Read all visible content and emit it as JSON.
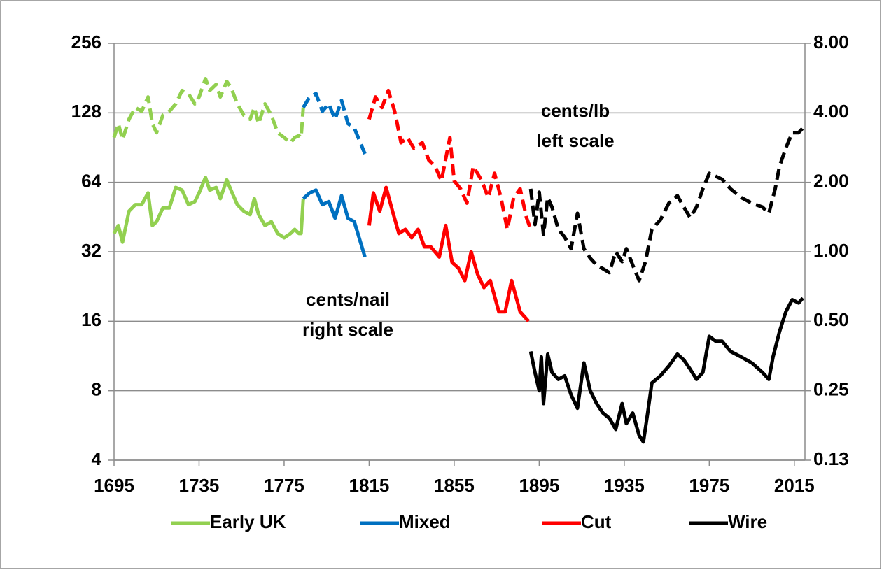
{
  "chart_data": {
    "type": "line",
    "log_scale": true,
    "grid": true,
    "legend": "bottom",
    "xlim": [
      1695,
      2020
    ],
    "xticks": [
      1695,
      1735,
      1775,
      1815,
      1855,
      1895,
      1935,
      1975,
      2015
    ],
    "ylim": [
      4,
      256
    ],
    "yticks": [
      4,
      8,
      16,
      32,
      64,
      128,
      256
    ],
    "y2lim": [
      0.125,
      8
    ],
    "y2ticks": [
      {
        "value": 0.125,
        "label": "0.13"
      },
      {
        "value": 0.25,
        "label": "0.25"
      },
      {
        "value": 0.5,
        "label": "0.50"
      },
      {
        "value": 1,
        "label": "1.00"
      },
      {
        "value": 2,
        "label": "2.00"
      },
      {
        "value": 4,
        "label": "4.00"
      },
      {
        "value": 8,
        "label": "8.00"
      }
    ],
    "annotations": [
      "cents/lb",
      "left scale",
      "cents/nail",
      "right scale"
    ],
    "series": [
      {
        "name": "Early UK",
        "color": "#92d050",
        "axis": "y2",
        "dashed": false,
        "x": [
          1695,
          1697,
          1699,
          1702,
          1705,
          1708,
          1711,
          1713,
          1715,
          1718,
          1721,
          1724,
          1727,
          1730,
          1733,
          1735,
          1738,
          1740,
          1743,
          1745,
          1748,
          1750,
          1753,
          1756,
          1759,
          1761,
          1763,
          1766,
          1769,
          1772,
          1775,
          1778,
          1780,
          1782,
          1783,
          1784
        ],
        "values": [
          1.2,
          1.3,
          1.1,
          1.5,
          1.6,
          1.6,
          1.8,
          1.3,
          1.35,
          1.55,
          1.55,
          1.9,
          1.85,
          1.6,
          1.65,
          1.8,
          2.1,
          1.85,
          1.9,
          1.7,
          2.05,
          1.85,
          1.6,
          1.5,
          1.45,
          1.7,
          1.45,
          1.3,
          1.35,
          1.2,
          1.15,
          1.2,
          1.25,
          1.2,
          1.2,
          1.7
        ]
      },
      {
        "name": "Mixed",
        "color": "#0070c0",
        "axis": "y2",
        "dashed": false,
        "x": [
          1784,
          1787,
          1790,
          1793,
          1796,
          1799,
          1802,
          1805,
          1808,
          1813
        ],
        "values": [
          1.7,
          1.8,
          1.85,
          1.6,
          1.65,
          1.4,
          1.75,
          1.4,
          1.35,
          0.95
        ]
      },
      {
        "name": "Cut",
        "color": "#ff0000",
        "axis": "y2",
        "dashed": false,
        "x": [
          1815,
          1817,
          1820,
          1823,
          1826,
          1829,
          1832,
          1835,
          1838,
          1841,
          1844,
          1848,
          1851,
          1854,
          1857,
          1860,
          1863,
          1866,
          1869,
          1872,
          1876,
          1879,
          1882,
          1886,
          1890
        ],
        "values": [
          1.3,
          1.8,
          1.5,
          1.9,
          1.5,
          1.2,
          1.25,
          1.15,
          1.25,
          1.05,
          1.05,
          0.95,
          1.3,
          0.9,
          0.85,
          0.75,
          1.0,
          0.8,
          0.7,
          0.75,
          0.55,
          0.55,
          0.75,
          0.55,
          0.5
        ]
      },
      {
        "name": "Wire",
        "color": "#000000",
        "axis": "y2",
        "dashed": false,
        "x": [
          1891,
          1893,
          1895,
          1896,
          1897,
          1899,
          1901,
          1904,
          1907,
          1910,
          1913,
          1916,
          1919,
          1922,
          1925,
          1928,
          1931,
          1934,
          1936,
          1939,
          1942,
          1944,
          1946,
          1948,
          1952,
          1956,
          1960,
          1963,
          1966,
          1969,
          1972,
          1975,
          1978,
          1981,
          1985,
          1990,
          1995,
          2000,
          2003,
          2005,
          2008,
          2011,
          2014,
          2017,
          2019
        ],
        "values": [
          0.37,
          0.3,
          0.25,
          0.35,
          0.22,
          0.36,
          0.3,
          0.28,
          0.29,
          0.24,
          0.21,
          0.33,
          0.25,
          0.22,
          0.2,
          0.19,
          0.17,
          0.22,
          0.18,
          0.2,
          0.16,
          0.15,
          0.2,
          0.27,
          0.29,
          0.32,
          0.36,
          0.34,
          0.31,
          0.28,
          0.3,
          0.43,
          0.41,
          0.41,
          0.37,
          0.35,
          0.33,
          0.3,
          0.28,
          0.35,
          0.45,
          0.55,
          0.62,
          0.6,
          0.63
        ]
      },
      {
        "color": "#92d050",
        "axis": "y",
        "dashed": true,
        "x": [
          1695,
          1697,
          1699,
          1702,
          1705,
          1708,
          1711,
          1713,
          1715,
          1718,
          1721,
          1724,
          1727,
          1730,
          1733,
          1735,
          1738,
          1740,
          1743,
          1745,
          1748,
          1750,
          1753,
          1756,
          1759,
          1761,
          1763,
          1766,
          1769,
          1772,
          1775,
          1778,
          1780,
          1782,
          1783,
          1784
        ],
        "values": [
          100,
          115,
          98,
          120,
          135,
          130,
          150,
          115,
          105,
          125,
          130,
          140,
          160,
          155,
          140,
          150,
          180,
          160,
          170,
          150,
          175,
          165,
          140,
          125,
          120,
          135,
          115,
          140,
          125,
          105,
          100,
          95,
          100,
          102,
          100,
          135
        ]
      },
      {
        "color": "#0070c0",
        "axis": "y",
        "dashed": true,
        "x": [
          1784,
          1787,
          1790,
          1793,
          1796,
          1799,
          1802,
          1805,
          1808,
          1813
        ],
        "values": [
          135,
          150,
          155,
          130,
          140,
          120,
          145,
          115,
          110,
          85
        ]
      },
      {
        "color": "#ff0000",
        "axis": "y",
        "dashed": true,
        "x": [
          1815,
          1818,
          1821,
          1824,
          1827,
          1830,
          1833,
          1836,
          1840,
          1843,
          1846,
          1849,
          1853,
          1855,
          1858,
          1861,
          1864,
          1868,
          1871,
          1874,
          1877,
          1880,
          1883,
          1886,
          1889,
          1891
        ],
        "values": [
          120,
          150,
          135,
          160,
          130,
          95,
          100,
          90,
          95,
          80,
          75,
          65,
          100,
          65,
          60,
          52,
          75,
          65,
          55,
          70,
          55,
          40,
          55,
          60,
          45,
          40
        ]
      },
      {
        "color": "#000000",
        "axis": "y",
        "dashed": true,
        "x": [
          1891,
          1893,
          1895,
          1897,
          1899,
          1901,
          1904,
          1907,
          1910,
          1913,
          1916,
          1919,
          1922,
          1925,
          1928,
          1931,
          1934,
          1936,
          1939,
          1942,
          1945,
          1948,
          1952,
          1956,
          1960,
          1963,
          1966,
          1969,
          1972,
          1975,
          1978,
          1981,
          1985,
          1990,
          1995,
          2000,
          2003,
          2006,
          2008,
          2011,
          2014,
          2017,
          2019
        ],
        "values": [
          60,
          42,
          58,
          38,
          55,
          50,
          40,
          37,
          33,
          47,
          33,
          30,
          28,
          27,
          26,
          32,
          29,
          33,
          28,
          24,
          29,
          40,
          44,
          52,
          56,
          50,
          45,
          50,
          60,
          70,
          68,
          66,
          60,
          55,
          52,
          50,
          47,
          60,
          75,
          90,
          105,
          105,
          110
        ]
      }
    ]
  }
}
